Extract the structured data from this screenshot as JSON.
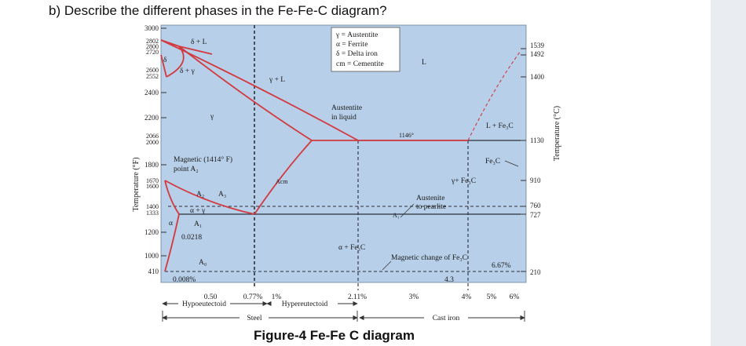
{
  "question": "b) Describe the different phases in the Fe-Fe-C diagram?",
  "caption": "Figure-4 Fe-Fe C diagram",
  "colors": {
    "plot_bg": "#b7cfe8",
    "phase_line": "#d3393f",
    "text": "#1a1a1a",
    "panel": "#e9ecf0"
  },
  "axis": {
    "left_label": "Temperature (°F)",
    "right_label": "Temperature (°C)",
    "left_ticks": [
      "3000",
      "2802",
      "2800",
      "2720",
      "2600",
      "2552",
      "2400",
      "2200",
      "2066",
      "2000",
      "1800",
      "1670",
      "1600",
      "1400",
      "1333",
      "1200",
      "1000",
      "410"
    ],
    "right_ticks": [
      "1539",
      "1492",
      "1400",
      "1130",
      "910",
      "760",
      "727",
      "210"
    ]
  },
  "legend": {
    "gamma": "γ = Austentite",
    "alpha": "α = Ferrite",
    "delta": "δ = Delta iron",
    "cm": "cm = Cementite"
  },
  "regions": {
    "delta_l": "δ + L",
    "delta": "δ",
    "delta_gamma": "δ + γ",
    "gamma_l": "γ + L",
    "l": "L",
    "gamma": "γ",
    "austenite_liquid_1": "Austentite",
    "austenite_liquid_2": "in liquid",
    "eutectic_temp": "1146°",
    "l_fe3c": "L + Fe₃C",
    "fe3c": "Fe₃C",
    "magnetic_1": "Magnetic (1414° F)",
    "magnetic_2": "point A₂",
    "acm": "Acm",
    "gamma_fe3c": "γ+ Fe₃C",
    "a2": "A₂",
    "a3": "A₃",
    "alpha_gamma": "α + γ",
    "a1_left": "A₁",
    "a1_right": "A₁",
    "alpha": "α",
    "c0218": "0.0218",
    "austenite_pearlite_1": "Austenite",
    "austenite_pearlite_2": "to pearlite",
    "alpha_fe3c": "α + Fe₃C",
    "mag_change": "Magnetic change of Fe₃C",
    "a0": "A₀",
    "c0008": "0.008%",
    "c667": "6.67%",
    "c43": "4.3"
  },
  "bottom": {
    "x_labels": [
      "0.50",
      "0.77%",
      "1%",
      "2.11%",
      "3%",
      "4%",
      "5%",
      "6%"
    ],
    "hypoeutectoid": "Hypoeutectoid",
    "hypereutectoid": "Hypereutectoid",
    "steel": "Steel",
    "cast_iron": "Cast iron"
  }
}
